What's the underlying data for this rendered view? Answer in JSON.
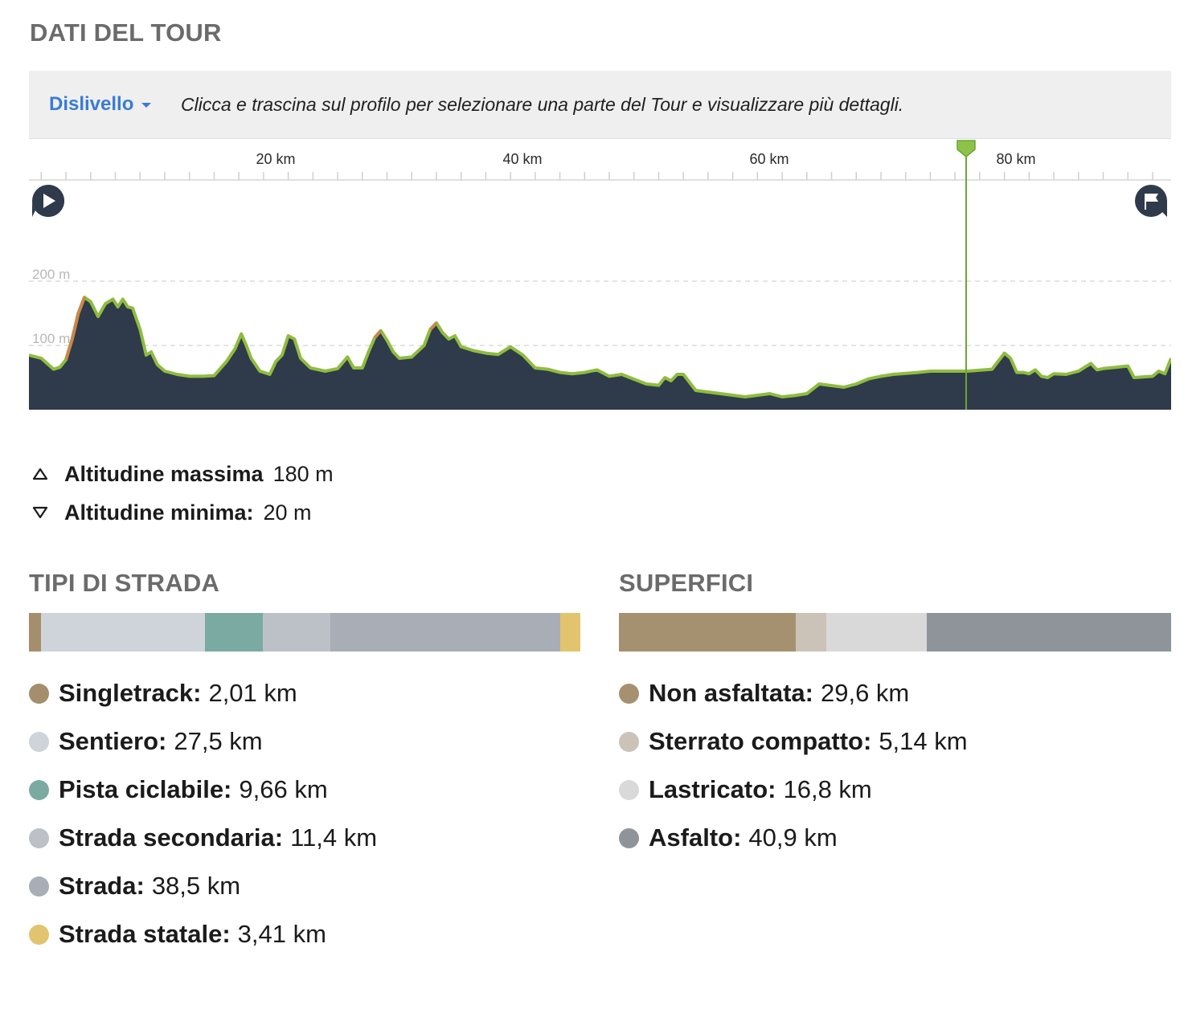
{
  "header": {
    "title": "DATI DEL TOUR"
  },
  "toolbar": {
    "dropdown_label": "Dislivello",
    "hint": "Clicca e trascina sul profilo per selezionare una parte del Tour e visualizzare più dettagli."
  },
  "profile": {
    "km_ticks": [
      "20 km",
      "40 km",
      "60 km",
      "80 km"
    ],
    "alt_ticks": [
      "200 m",
      "100 m"
    ],
    "total_km": 92.5,
    "marker_km": 75.9,
    "colors": {
      "fill": "#2f3a4a",
      "line": "#8fbc3f",
      "climb": "#c9874a",
      "marker": "#6aa532"
    },
    "elevation": [
      [
        0,
        85
      ],
      [
        1,
        80
      ],
      [
        2,
        63
      ],
      [
        2.5,
        66
      ],
      [
        3,
        78
      ],
      [
        3.5,
        110
      ],
      [
        4,
        150
      ],
      [
        4.5,
        175
      ],
      [
        5,
        168
      ],
      [
        5.6,
        145
      ],
      [
        6.2,
        165
      ],
      [
        6.8,
        172
      ],
      [
        7.2,
        160
      ],
      [
        7.6,
        172
      ],
      [
        8,
        160
      ],
      [
        8.4,
        158
      ],
      [
        9,
        125
      ],
      [
        9.5,
        85
      ],
      [
        9.9,
        90
      ],
      [
        10.4,
        70
      ],
      [
        11,
        60
      ],
      [
        12,
        55
      ],
      [
        13,
        52
      ],
      [
        14,
        52
      ],
      [
        15,
        53
      ],
      [
        16,
        75
      ],
      [
        16.7,
        95
      ],
      [
        17.2,
        118
      ],
      [
        17.6,
        100
      ],
      [
        18,
        80
      ],
      [
        18.7,
        60
      ],
      [
        19.5,
        55
      ],
      [
        20,
        75
      ],
      [
        20.5,
        85
      ],
      [
        21,
        115
      ],
      [
        21.5,
        110
      ],
      [
        22,
        80
      ],
      [
        22.8,
        65
      ],
      [
        24,
        60
      ],
      [
        25,
        64
      ],
      [
        25.8,
        82
      ],
      [
        26.3,
        65
      ],
      [
        27,
        65
      ],
      [
        27.5,
        90
      ],
      [
        28,
        112
      ],
      [
        28.5,
        123
      ],
      [
        29,
        108
      ],
      [
        29.5,
        90
      ],
      [
        30,
        80
      ],
      [
        31,
        82
      ],
      [
        32,
        100
      ],
      [
        32.5,
        125
      ],
      [
        33,
        135
      ],
      [
        33.5,
        120
      ],
      [
        34,
        110
      ],
      [
        34.5,
        115
      ],
      [
        35,
        98
      ],
      [
        36,
        92
      ],
      [
        37,
        88
      ],
      [
        38,
        86
      ],
      [
        39,
        98
      ],
      [
        40,
        85
      ],
      [
        41,
        65
      ],
      [
        42,
        63
      ],
      [
        43,
        58
      ],
      [
        44,
        56
      ],
      [
        45,
        58
      ],
      [
        46,
        62
      ],
      [
        47,
        52
      ],
      [
        48,
        55
      ],
      [
        50,
        40
      ],
      [
        51,
        38
      ],
      [
        51.5,
        50
      ],
      [
        52,
        45
      ],
      [
        52.5,
        55
      ],
      [
        53,
        55
      ],
      [
        54,
        30
      ],
      [
        56,
        25
      ],
      [
        58,
        20
      ],
      [
        60,
        25
      ],
      [
        61,
        20
      ],
      [
        62,
        22
      ],
      [
        63,
        25
      ],
      [
        64,
        40
      ],
      [
        66,
        35
      ],
      [
        67,
        40
      ],
      [
        68,
        48
      ],
      [
        69,
        52
      ],
      [
        70,
        55
      ],
      [
        72,
        58
      ],
      [
        73,
        60
      ],
      [
        74,
        60
      ],
      [
        75,
        60
      ],
      [
        76,
        60
      ],
      [
        78,
        63
      ],
      [
        79,
        88
      ],
      [
        79.5,
        80
      ],
      [
        80,
        58
      ],
      [
        80.5,
        58
      ],
      [
        81,
        56
      ],
      [
        81.5,
        62
      ],
      [
        82,
        52
      ],
      [
        82.5,
        50
      ],
      [
        83,
        56
      ],
      [
        84,
        55
      ],
      [
        85,
        60
      ],
      [
        86,
        72
      ],
      [
        86.5,
        62
      ],
      [
        87,
        64
      ],
      [
        88,
        66
      ],
      [
        89,
        68
      ],
      [
        89.5,
        50
      ],
      [
        91,
        52
      ],
      [
        91.5,
        60
      ],
      [
        92,
        56
      ],
      [
        92.5,
        80
      ]
    ],
    "climbs": [
      [
        [
          3,
          78
        ],
        [
          3.5,
          110
        ],
        [
          4,
          150
        ],
        [
          4.5,
          175
        ]
      ],
      [
        [
          32.5,
          125
        ],
        [
          33,
          135
        ]
      ],
      [
        [
          28,
          112
        ],
        [
          28.5,
          123
        ]
      ]
    ]
  },
  "stats": {
    "max_label": "Altitudine massima",
    "max_value": "180 m",
    "min_label": "Altitudine minima:",
    "min_value": "20 m"
  },
  "road_types": {
    "title": "TIPI DI STRADA",
    "items": [
      {
        "name": "Singletrack:",
        "value": "2,01 km",
        "km": 2.01,
        "color": "#a48e6b"
      },
      {
        "name": "Sentiero:",
        "value": "27,5 km",
        "km": 27.5,
        "color": "#cfd3da"
      },
      {
        "name": "Pista ciclabile:",
        "value": "9,66 km",
        "km": 9.66,
        "color": "#7aaaa2"
      },
      {
        "name": "Strada secondaria:",
        "value": "11,4 km",
        "km": 11.4,
        "color": "#bcc0c7"
      },
      {
        "name": "Strada:",
        "value": "38,5 km",
        "km": 38.5,
        "color": "#a8adb6"
      },
      {
        "name": "Strada statale:",
        "value": "3,41 km",
        "km": 3.41,
        "color": "#e2c46f"
      }
    ]
  },
  "surfaces": {
    "title": "SUPERFICI",
    "items": [
      {
        "name": "Non asfaltata:",
        "value": "29,6 km",
        "km": 29.6,
        "color": "#a59170"
      },
      {
        "name": "Sterrato compatto:",
        "value": "5,14 km",
        "km": 5.14,
        "color": "#cbc3b7"
      },
      {
        "name": "Lastricato:",
        "value": "16,8 km",
        "km": 16.8,
        "color": "#d9d9d9"
      },
      {
        "name": "Asfalto:",
        "value": "40,9 km",
        "km": 40.9,
        "color": "#8f949b"
      }
    ]
  }
}
